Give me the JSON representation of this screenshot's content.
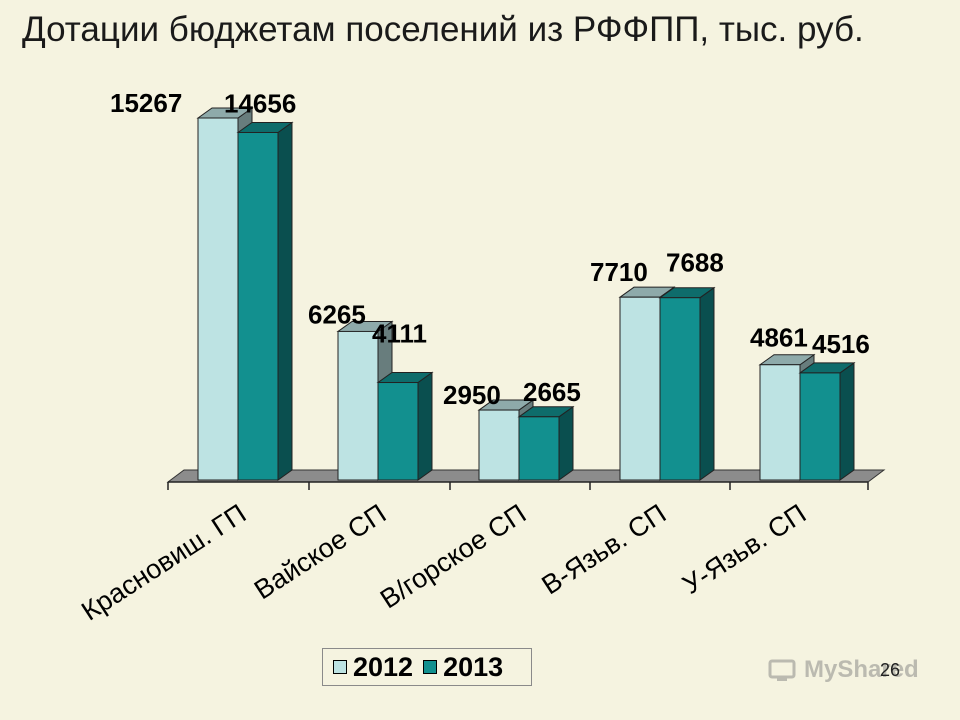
{
  "title": "Дотации бюджетам поселений из РФФПП, тыс. руб.",
  "page_number": "26",
  "watermark": "MyShared",
  "colors": {
    "2012": "#bde3e3",
    "2013": "#12908f",
    "axis_floor": "#8c8c8c",
    "background": "#f5f3e0"
  },
  "chart_data": {
    "type": "bar",
    "title": "Дотации бюджетам поселений из РФФПП, тыс. руб.",
    "categories": [
      "Красновиш. ГП",
      "Вайское СП",
      "В/горское СП",
      "В-Язьв. СП",
      "У-Язьв. СП"
    ],
    "series": [
      {
        "name": "2012",
        "values": [
          15267,
          6265,
          2950,
          7710,
          4861
        ]
      },
      {
        "name": "2013",
        "values": [
          14656,
          4111,
          2665,
          7688,
          4516
        ]
      }
    ],
    "value_labels": {
      "2012": [
        "15267",
        "6265",
        "2950",
        "7710",
        "4861"
      ],
      "2013": [
        "14656",
        "4111",
        "2665",
        "7688",
        "4516"
      ]
    },
    "ylim": [
      0,
      15267
    ],
    "grid": false,
    "legend": "bottom",
    "style": "3d-clustered-column"
  }
}
